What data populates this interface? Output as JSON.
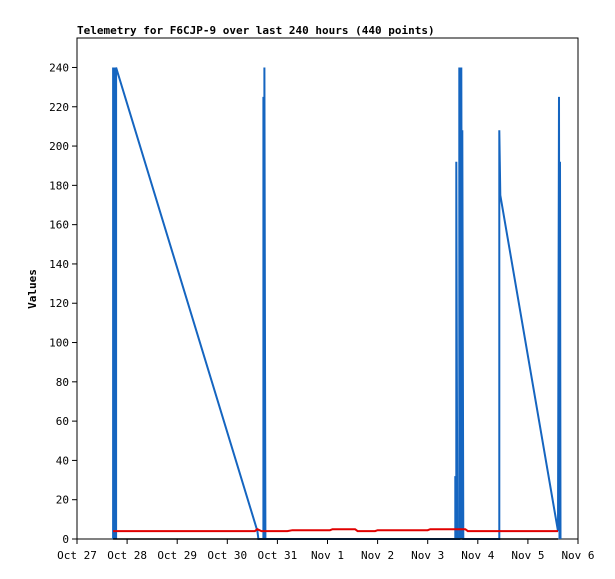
{
  "chart_data": {
    "type": "line",
    "title": "Telemetry for F6CJP-9 over last 240 hours (440 points)",
    "ylabel": "Values",
    "xlabel": "",
    "ylim": [
      0,
      255
    ],
    "yticks": [
      0,
      20,
      40,
      60,
      80,
      100,
      120,
      140,
      160,
      180,
      200,
      220,
      240
    ],
    "x_tick_labels": [
      "Oct 27",
      "Oct 28",
      "Oct 29",
      "Oct 30",
      "Oct 31",
      "Nov 1",
      "Nov 2",
      "Nov 3",
      "Nov 4",
      "Nov 5",
      "Nov 6"
    ],
    "x_unit": "days since Oct 27 00:00",
    "xlim": [
      0,
      10
    ],
    "grid": false,
    "series": [
      {
        "color": "#1565c0",
        "points": [
          [
            0.72,
            0
          ],
          [
            0.72,
            240
          ],
          [
            0.74,
            0
          ],
          [
            0.74,
            240
          ],
          [
            0.76,
            0
          ],
          [
            0.76,
            240
          ],
          [
            0.78,
            0
          ],
          [
            0.78,
            240
          ],
          [
            3.6,
            4
          ],
          [
            3.62,
            0
          ],
          [
            3.72,
            0
          ],
          [
            3.72,
            225
          ],
          [
            3.74,
            0
          ],
          [
            3.74,
            240
          ],
          [
            3.76,
            0
          ],
          [
            7.55,
            0
          ],
          [
            7.55,
            32
          ],
          [
            7.57,
            0
          ],
          [
            7.57,
            192
          ],
          [
            7.59,
            0
          ],
          [
            7.63,
            0
          ],
          [
            7.63,
            240
          ],
          [
            7.65,
            0
          ],
          [
            7.65,
            240
          ],
          [
            7.67,
            0
          ],
          [
            7.67,
            240
          ],
          [
            7.69,
            0
          ],
          [
            7.69,
            208
          ],
          [
            7.71,
            0
          ],
          [
            8.43,
            0
          ],
          [
            8.43,
            208
          ],
          [
            8.45,
            175
          ],
          [
            9.6,
            4
          ],
          [
            9.62,
            225
          ],
          [
            9.63,
            0
          ],
          [
            9.64,
            192
          ],
          [
            9.65,
            0
          ]
        ]
      },
      {
        "color": "#e00000",
        "points": [
          [
            0.72,
            4
          ],
          [
            3.55,
            4
          ],
          [
            3.6,
            5
          ],
          [
            3.68,
            4
          ],
          [
            4.2,
            4
          ],
          [
            4.3,
            4.5
          ],
          [
            5.05,
            4.5
          ],
          [
            5.1,
            5
          ],
          [
            5.55,
            5
          ],
          [
            5.6,
            4
          ],
          [
            5.95,
            4
          ],
          [
            6.0,
            4.5
          ],
          [
            7.0,
            4.5
          ],
          [
            7.05,
            5
          ],
          [
            7.75,
            5
          ],
          [
            7.8,
            4
          ],
          [
            9.6,
            4
          ]
        ]
      },
      {
        "color": "#000000",
        "points": [
          [
            0.72,
            0
          ],
          [
            9.6,
            0
          ]
        ]
      }
    ]
  }
}
